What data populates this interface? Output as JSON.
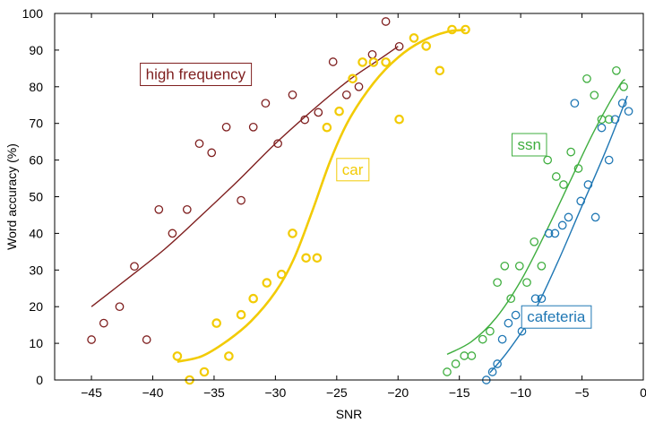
{
  "chart_data": {
    "type": "scatter",
    "xlabel": "SNR",
    "ylabel": "Word accuracy (%)",
    "xlim": [
      -48,
      0
    ],
    "ylim": [
      0,
      100
    ],
    "x_ticks": [
      -45,
      -40,
      -35,
      -30,
      -25,
      -20,
      -15,
      -10,
      -5,
      0
    ],
    "y_ticks": [
      0,
      10,
      20,
      30,
      40,
      50,
      60,
      70,
      80,
      90,
      100
    ],
    "grid": false,
    "series": [
      {
        "name": "high frequency",
        "color": "#7f1f1f",
        "marker_stroke": 1.3,
        "curve_stroke": 1.4,
        "points": [
          [
            -45,
            11
          ],
          [
            -44,
            15.5
          ],
          [
            -42.7,
            20
          ],
          [
            -41.5,
            31
          ],
          [
            -40.5,
            11
          ],
          [
            -39.5,
            46.5
          ],
          [
            -38.4,
            40
          ],
          [
            -37.2,
            46.5
          ],
          [
            -36.2,
            64.5
          ],
          [
            -35.2,
            62
          ],
          [
            -34,
            69
          ],
          [
            -32.8,
            49
          ],
          [
            -31.8,
            69
          ],
          [
            -30.8,
            75.5
          ],
          [
            -29.8,
            64.5
          ],
          [
            -28.6,
            77.8
          ],
          [
            -27.6,
            71
          ],
          [
            -26.5,
            73
          ],
          [
            -25.3,
            86.8
          ],
          [
            -24.2,
            77.8
          ],
          [
            -23.2,
            80
          ],
          [
            -22.1,
            88.8
          ],
          [
            -21,
            97.8
          ],
          [
            -19.9,
            91
          ]
        ],
        "curve": [
          [
            -45,
            20
          ],
          [
            -42,
            27.8
          ],
          [
            -39,
            35.8
          ],
          [
            -36,
            45
          ],
          [
            -33,
            54.5
          ],
          [
            -30,
            64.5
          ],
          [
            -27,
            73.5
          ],
          [
            -24,
            81.8
          ],
          [
            -21.5,
            87.5
          ],
          [
            -20,
            91
          ]
        ]
      },
      {
        "name": "car",
        "color": "#f2cb05",
        "marker_stroke": 2.2,
        "curve_stroke": 2.6,
        "points": [
          [
            -38,
            6.5
          ],
          [
            -37,
            0
          ],
          [
            -35.8,
            2.2
          ],
          [
            -34.8,
            15.5
          ],
          [
            -33.8,
            6.5
          ],
          [
            -32.8,
            17.8
          ],
          [
            -31.8,
            22.2
          ],
          [
            -30.7,
            26.5
          ],
          [
            -29.5,
            28.8
          ],
          [
            -28.6,
            40
          ],
          [
            -27.5,
            33.3
          ],
          [
            -26.6,
            33.3
          ],
          [
            -25.8,
            68.9
          ],
          [
            -24.8,
            73.3
          ],
          [
            -23.7,
            82.2
          ],
          [
            -22.9,
            86.7
          ],
          [
            -22,
            86.7
          ],
          [
            -21,
            86.7
          ],
          [
            -19.9,
            71.1
          ],
          [
            -18.7,
            93.3
          ],
          [
            -17.7,
            91.1
          ],
          [
            -16.6,
            84.4
          ],
          [
            -15.6,
            95.6
          ],
          [
            -14.5,
            95.6
          ]
        ],
        "curve": [
          [
            -38,
            5
          ],
          [
            -36,
            6.5
          ],
          [
            -34,
            10.5
          ],
          [
            -32,
            16
          ],
          [
            -30,
            24
          ],
          [
            -28.5,
            33
          ],
          [
            -27,
            46
          ],
          [
            -25.5,
            60
          ],
          [
            -24,
            71
          ],
          [
            -22,
            81
          ],
          [
            -20,
            88
          ],
          [
            -18,
            92.5
          ],
          [
            -16,
            95
          ],
          [
            -14.5,
            95.5
          ]
        ]
      },
      {
        "name": "ssn",
        "color": "#3fae3f",
        "marker_stroke": 1.3,
        "curve_stroke": 1.4,
        "points": [
          [
            -16,
            2.2
          ],
          [
            -15.3,
            4.4
          ],
          [
            -14.6,
            6.6
          ],
          [
            -14,
            6.6
          ],
          [
            -13.1,
            11.1
          ],
          [
            -12.5,
            13.3
          ],
          [
            -11.9,
            26.6
          ],
          [
            -11.3,
            31.1
          ],
          [
            -10.8,
            22.2
          ],
          [
            -10.1,
            31.1
          ],
          [
            -9.5,
            26.6
          ],
          [
            -8.9,
            37.7
          ],
          [
            -8.3,
            31.1
          ],
          [
            -7.8,
            60
          ],
          [
            -7.1,
            55.5
          ],
          [
            -6.5,
            53.3
          ],
          [
            -5.9,
            62.2
          ],
          [
            -5.3,
            57.7
          ],
          [
            -4.6,
            82.2
          ],
          [
            -4,
            77.7
          ],
          [
            -3.4,
            71.1
          ],
          [
            -2.8,
            71.1
          ],
          [
            -2.2,
            84.4
          ],
          [
            -1.6,
            80
          ]
        ],
        "curve": [
          [
            -16,
            7
          ],
          [
            -14,
            10.5
          ],
          [
            -12,
            17
          ],
          [
            -10,
            27
          ],
          [
            -8,
            40
          ],
          [
            -6,
            54
          ],
          [
            -4,
            68
          ],
          [
            -2,
            80
          ],
          [
            -1.5,
            82
          ]
        ]
      },
      {
        "name": "cafeteria",
        "color": "#1f77b4",
        "marker_stroke": 1.3,
        "curve_stroke": 1.4,
        "points": [
          [
            -12.8,
            0
          ],
          [
            -12.3,
            2.2
          ],
          [
            -11.9,
            4.4
          ],
          [
            -11.5,
            11.1
          ],
          [
            -11,
            15.5
          ],
          [
            -10.4,
            17.7
          ],
          [
            -9.9,
            13.3
          ],
          [
            -9.4,
            15.5
          ],
          [
            -8.8,
            22.2
          ],
          [
            -8.3,
            22.2
          ],
          [
            -7.7,
            40
          ],
          [
            -7.2,
            40
          ],
          [
            -6.6,
            42.2
          ],
          [
            -6.1,
            44.4
          ],
          [
            -5.6,
            75.5
          ],
          [
            -5.1,
            48.8
          ],
          [
            -4.5,
            53.3
          ],
          [
            -3.9,
            44.4
          ],
          [
            -3.4,
            68.8
          ],
          [
            -2.8,
            60
          ],
          [
            -2.3,
            71.1
          ],
          [
            -1.7,
            75.5
          ],
          [
            -1.2,
            73.3
          ]
        ],
        "curve": [
          [
            -12.5,
            2
          ],
          [
            -11,
            8
          ],
          [
            -9,
            18
          ],
          [
            -7,
            32
          ],
          [
            -5,
            47.5
          ],
          [
            -3,
            63
          ],
          [
            -1.3,
            77.5
          ]
        ]
      }
    ],
    "annotations": [
      {
        "text": "high frequency",
        "series": "high frequency",
        "x": -36.5,
        "y": 83.5,
        "color": "#7f1f1f"
      },
      {
        "text": "car",
        "series": "car",
        "x": -23.7,
        "y": 57.5,
        "color": "#f2cb05"
      },
      {
        "text": "ssn",
        "series": "ssn",
        "x": -9.3,
        "y": 64.3,
        "color": "#3fae3f"
      },
      {
        "text": "cafeteria",
        "series": "cafeteria",
        "x": -7.1,
        "y": 17.3,
        "color": "#1f77b4"
      }
    ]
  }
}
